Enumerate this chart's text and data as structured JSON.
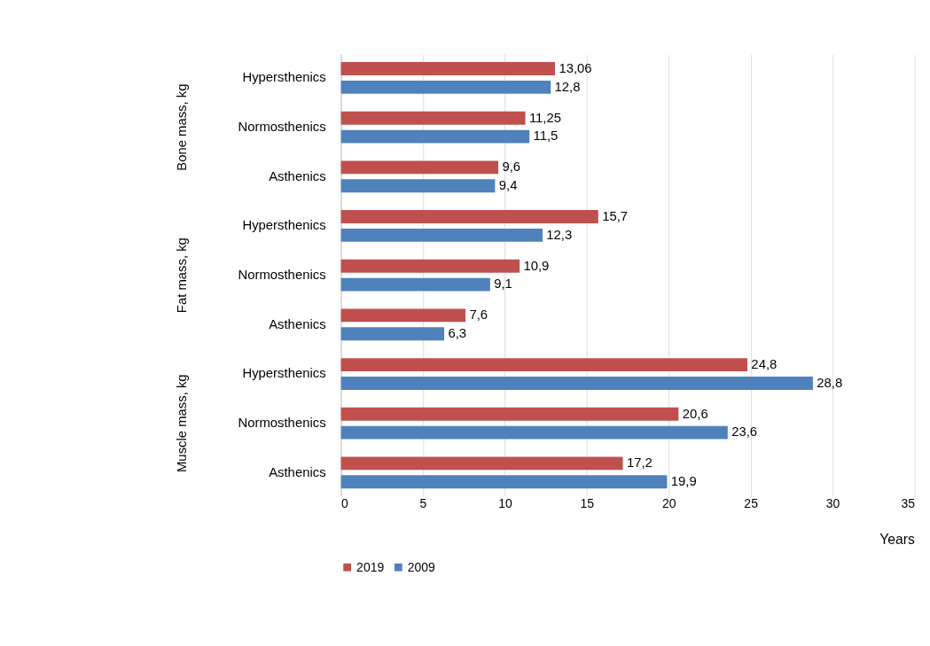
{
  "chart_data": {
    "type": "bar",
    "orientation": "horizontal",
    "categories": [
      "Hypersthenics",
      "Normosthenics",
      "Asthenics",
      "Hypersthenics",
      "Normosthenics",
      "Asthenics",
      "Hypersthenics",
      "Normosthenics",
      "Asthenics"
    ],
    "series": [
      {
        "name": "2019",
        "color": "#c0504d",
        "values": [
          13.06,
          11.25,
          9.6,
          15.7,
          10.9,
          7.6,
          24.8,
          20.6,
          17.2
        ],
        "value_labels": [
          "13,06",
          "11,25",
          "9,6",
          "15,7",
          "10,9",
          "7,6",
          "24,8",
          "20,6",
          "17,2"
        ]
      },
      {
        "name": "2009",
        "color": "#4f81bd",
        "values": [
          12.8,
          11.5,
          9.4,
          12.3,
          9.1,
          6.3,
          28.8,
          23.6,
          19.9
        ],
        "value_labels": [
          "12,8",
          "11,5",
          "9,4",
          "12,3",
          "9,1",
          "6,3",
          "28,8",
          "23,6",
          "19,9"
        ]
      }
    ],
    "annotations": [
      "Bone mass, kg",
      "Fat mass, kg",
      "Muscle mass, kg"
    ],
    "xlabel": "Years",
    "xlim": [
      0,
      35
    ],
    "xticks": [
      0,
      5,
      10,
      15,
      20,
      25,
      30,
      35
    ],
    "grid": "x",
    "legend": "bottom"
  }
}
